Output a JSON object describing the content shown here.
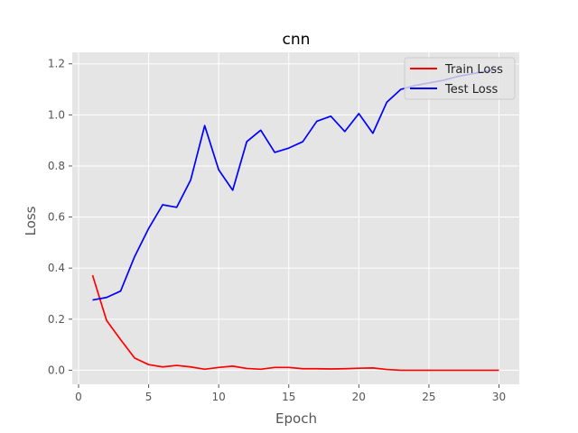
{
  "chart_data": {
    "type": "line",
    "title": "cnn",
    "xlabel": "Epoch",
    "ylabel": "Loss",
    "xlim": [
      -0.45,
      31.45
    ],
    "ylim": [
      -0.055,
      1.245
    ],
    "xticks": [
      0,
      5,
      10,
      15,
      20,
      25,
      30
    ],
    "yticks": [
      0.0,
      0.2,
      0.4,
      0.6,
      0.8,
      1.0,
      1.2
    ],
    "xtick_labels": [
      "0",
      "5",
      "10",
      "15",
      "20",
      "25",
      "30"
    ],
    "ytick_labels": [
      "0.0",
      "0.2",
      "0.4",
      "0.6",
      "0.8",
      "1.0",
      "1.2"
    ],
    "grid": true,
    "legend_position": "upper right",
    "background": "#e5e5e5",
    "x": [
      1,
      2,
      3,
      4,
      5,
      6,
      7,
      8,
      9,
      10,
      11,
      12,
      13,
      14,
      15,
      16,
      17,
      18,
      19,
      20,
      21,
      22,
      23,
      24,
      25,
      26,
      27,
      28,
      29,
      30
    ],
    "series": [
      {
        "name": "Train Loss",
        "color": "#ff0000",
        "values": [
          0.372,
          0.195,
          0.12,
          0.048,
          0.022,
          0.013,
          0.019,
          0.013,
          0.004,
          0.011,
          0.016,
          0.007,
          0.004,
          0.011,
          0.011,
          0.006,
          0.006,
          0.005,
          0.006,
          0.008,
          0.009,
          0.003,
          0.0,
          0.0,
          0.0,
          0.0,
          0.0,
          0.0,
          0.0,
          0.0
        ]
      },
      {
        "name": "Test Loss",
        "color": "#0000ff",
        "values": [
          0.275,
          0.285,
          0.31,
          0.445,
          0.555,
          0.648,
          0.638,
          0.745,
          0.958,
          0.785,
          0.705,
          0.895,
          0.94,
          0.853,
          0.87,
          0.895,
          0.975,
          0.995,
          0.935,
          1.005,
          0.928,
          1.05,
          1.1,
          1.115,
          1.125,
          1.135,
          1.15,
          1.16,
          1.17,
          1.18
        ]
      }
    ]
  }
}
